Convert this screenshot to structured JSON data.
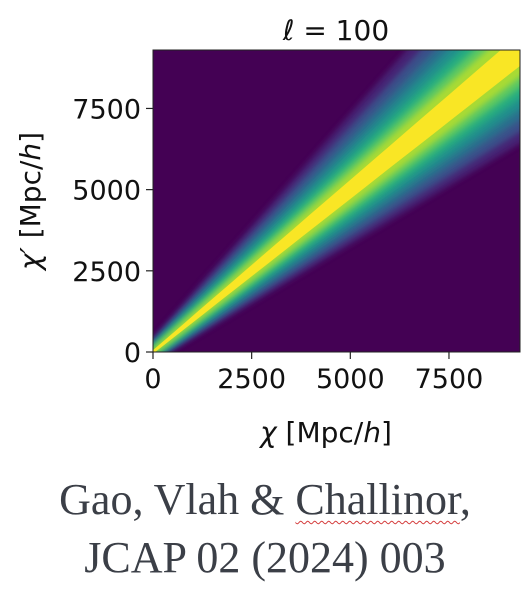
{
  "chart_data": {
    "type": "heatmap",
    "title": "ℓ = 100",
    "title_parts": {
      "symbol": "ℓ",
      "rest": " = 100"
    },
    "xlabel": "χ [Mpc/h]",
    "xlabel_parts": {
      "symbol": "χ",
      "unit_open": " [Mpc/",
      "unit_h": "h",
      "unit_close": "]"
    },
    "ylabel": "χ′ [Mpc/h]",
    "ylabel_parts": {
      "symbol": "χ′",
      "unit_open": " [Mpc/",
      "unit_h": "h",
      "unit_close": "]"
    },
    "xlim": [
      0,
      9300
    ],
    "ylim": [
      0,
      9300
    ],
    "xticks": [
      0,
      2500,
      5000,
      7500
    ],
    "xtick_labels": [
      "0",
      "2500",
      "5000",
      "7500"
    ],
    "yticks": [
      0,
      2500,
      5000,
      7500
    ],
    "ytick_labels": [
      "0",
      "2500",
      "5000",
      "7500"
    ],
    "colormap": "viridis",
    "background_color": "#440154",
    "grid": false,
    "ridge": {
      "description_free": true,
      "chi_prime_equals_chi": true,
      "peak_from_chi": 2500,
      "peak_to_chi": 9000
    }
  },
  "citation": {
    "authors_prefix": "Gao, Vlah & ",
    "author_underlined": "Challinor",
    "authors_suffix": ",",
    "journal": "JCAP 02 (2024) 003"
  }
}
